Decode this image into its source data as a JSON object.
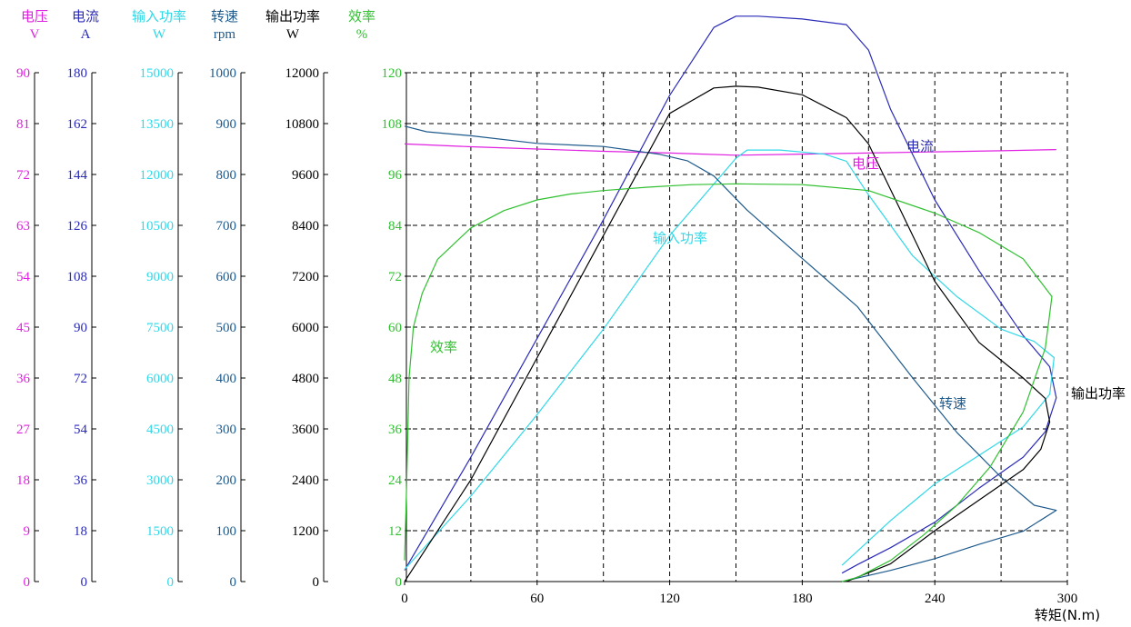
{
  "chart_data": {
    "type": "line",
    "title": "",
    "xlabel": "转矩(N.m)",
    "x_ticks": [
      "0",
      "60",
      "120",
      "180",
      "240",
      "300"
    ],
    "xlim": [
      0,
      300
    ],
    "grid": true,
    "axes": [
      {
        "key": "voltage",
        "name": "电压",
        "unit": "V",
        "color": "#e020e0",
        "max": 90,
        "ticks": [
          "0",
          "9",
          "18",
          "27",
          "36",
          "45",
          "54",
          "63",
          "72",
          "81",
          "90"
        ]
      },
      {
        "key": "current",
        "name": "电流",
        "unit": "A",
        "color": "#2a2ab8",
        "max": 180,
        "ticks": [
          "0",
          "18",
          "36",
          "54",
          "72",
          "90",
          "108",
          "126",
          "144",
          "162",
          "180"
        ]
      },
      {
        "key": "input_power",
        "name": "输入功率",
        "unit": "W",
        "color": "#30d8e8",
        "max": 15000,
        "ticks": [
          "0",
          "1500",
          "3000",
          "4500",
          "6000",
          "7500",
          "9000",
          "10500",
          "12000",
          "13500",
          "15000"
        ]
      },
      {
        "key": "speed",
        "name": "转速",
        "unit": "rpm",
        "color": "#1e5a8c",
        "max": 1000,
        "ticks": [
          "0",
          "100",
          "200",
          "300",
          "400",
          "500",
          "600",
          "700",
          "800",
          "900",
          "1000"
        ]
      },
      {
        "key": "output_power",
        "name": "输出功率",
        "unit": "W",
        "color": "#000000",
        "max": 12000,
        "ticks": [
          "0",
          "1200",
          "2400",
          "3600",
          "4800",
          "6000",
          "7200",
          "8400",
          "9600",
          "10800",
          "12000"
        ]
      },
      {
        "key": "efficiency",
        "name": "效率",
        "unit": "%",
        "color": "#30c030",
        "max": 120,
        "ticks": [
          "0",
          "12",
          "24",
          "36",
          "48",
          "60",
          "72",
          "84",
          "96",
          "108",
          "120"
        ]
      }
    ],
    "series": [
      {
        "name": "电压",
        "axis": "voltage",
        "color": "#e020e0",
        "label": "电压",
        "x": [
          0,
          30,
          60,
          90,
          120,
          150,
          180,
          210,
          240,
          270,
          295
        ],
        "y": [
          77.4,
          76.9,
          76.5,
          76.1,
          75.8,
          75.4,
          75.6,
          75.8,
          76.0,
          76.2,
          76.4
        ]
      },
      {
        "name": "电流",
        "axis": "current",
        "color": "#2a2ab8",
        "label": "电流",
        "x": [
          0,
          30,
          60,
          90,
          120,
          140,
          150,
          160,
          180,
          200,
          210,
          220,
          240,
          260,
          280,
          292,
          295,
          290,
          280,
          260,
          240,
          220,
          205,
          198
        ],
        "y": [
          4,
          44,
          86,
          128,
          172,
          196,
          200,
          200,
          199,
          197,
          188,
          167,
          135,
          110,
          87,
          76,
          65,
          53,
          44,
          33,
          21,
          12,
          6,
          3
        ]
      },
      {
        "name": "输入功率",
        "axis": "input_power",
        "color": "#30d8e8",
        "label": "输入功率",
        "x": [
          0,
          30,
          60,
          90,
          120,
          150,
          155,
          170,
          190,
          200,
          210,
          230,
          250,
          270,
          285,
          294,
          292,
          280,
          260,
          240,
          220,
          205,
          198
        ],
        "y": [
          360,
          2520,
          4920,
          7440,
          10200,
          12480,
          12720,
          12720,
          12600,
          12390,
          11400,
          9600,
          8400,
          7440,
          7080,
          6600,
          5520,
          4560,
          3720,
          2880,
          1800,
          900,
          480
        ]
      },
      {
        "name": "转速",
        "axis": "speed",
        "color": "#1e5a8c",
        "label": "转速",
        "x": [
          0,
          10,
          30,
          60,
          90,
          115,
          128,
          140,
          155,
          180,
          205,
          230,
          250,
          270,
          285,
          295,
          280,
          260,
          240,
          220,
          200
        ],
        "y": [
          895,
          884,
          876,
          861,
          855,
          840,
          827,
          797,
          730,
          635,
          540,
          400,
          293,
          205,
          150,
          140,
          99,
          73,
          45,
          22,
          2
        ]
      },
      {
        "name": "输出功率",
        "axis": "output_power",
        "color": "#000000",
        "label": "输出功率",
        "x": [
          0,
          30,
          60,
          90,
          120,
          140,
          150,
          160,
          180,
          200,
          210,
          220,
          240,
          260,
          280,
          290,
          292,
          288,
          280,
          260,
          240,
          220,
          200
        ],
        "y": [
          0,
          2400,
          5280,
          8160,
          11040,
          11640,
          11680,
          11660,
          11480,
          10940,
          10320,
          9240,
          7080,
          5640,
          4800,
          4320,
          3760,
          3120,
          2640,
          1920,
          1200,
          420,
          0
        ]
      },
      {
        "name": "效率",
        "axis": "efficiency",
        "color": "#30c030",
        "label": "效率",
        "x": [
          0,
          1,
          2,
          4,
          8,
          15,
          30,
          45,
          60,
          75,
          90,
          110,
          130,
          150,
          180,
          210,
          240,
          260,
          280,
          293,
          290,
          280,
          265,
          250,
          235,
          220,
          205,
          198
        ],
        "y": [
          5,
          24,
          48,
          60,
          68,
          76,
          83.4,
          87.5,
          90.0,
          91.4,
          92.2,
          93.0,
          93.6,
          93.8,
          93.6,
          92.2,
          86.9,
          82.3,
          76.1,
          67.2,
          55,
          40,
          27,
          18,
          11,
          5,
          1,
          0
        ]
      }
    ]
  }
}
